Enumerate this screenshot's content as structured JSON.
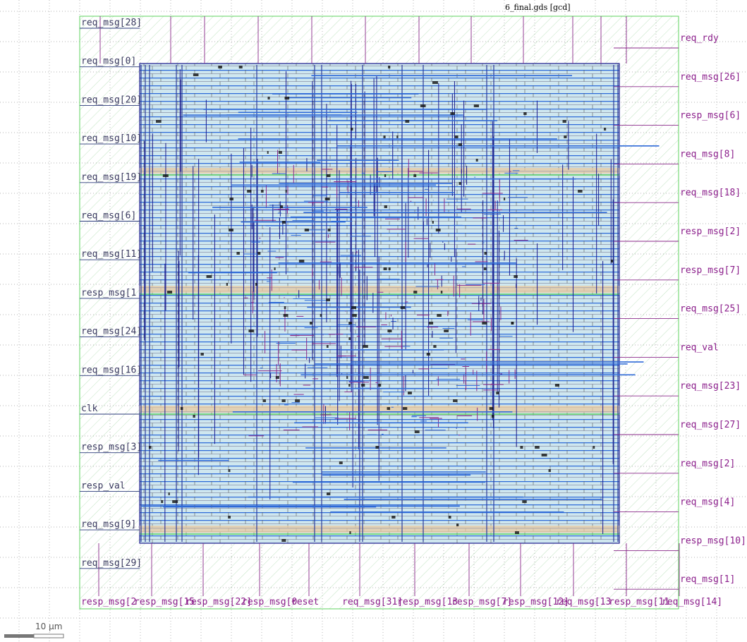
{
  "title": "6_final.gds [gcd]",
  "scale_bar": {
    "label": "10 μm"
  },
  "colors": {
    "pin_label": "#8b1e8b",
    "left_label": "#3a3a60",
    "boundary": "#5fd35f",
    "core_fill": "#c7e6ee",
    "metal_h": "#2e6ad8",
    "metal_v": "#1a1a8c",
    "route_purple": "#8a2a8a",
    "power_stripe": "#e8c9a0"
  },
  "pins": {
    "top": [],
    "left": [
      "req_msg[28]",
      "req_msg[0]",
      "req_msg[20]",
      "req_msg[10]",
      "req_msg[19]",
      "req_msg[6]",
      "req_msg[11]",
      "resp_msg[1",
      "req_msg[24]",
      "req_msg[16]",
      "clk",
      "resp_msg[3]",
      "resp_val",
      "req_msg[9]",
      "req_msg[29]"
    ],
    "right": [
      "req_rdy",
      "req_msg[26]",
      "resp_msg[6]",
      "req_msg[8]",
      "req_msg[18]",
      "resp_msg[2]",
      "resp_msg[7]",
      "req_msg[25]",
      "req_val",
      "req_msg[23]",
      "req_msg[27]",
      "req_msg[2]",
      "req_msg[4]",
      "resp_msg[10]",
      "req_msg[1]"
    ],
    "bottom": [
      "resp_msg[2",
      "resp_msg[15",
      "resp_msg[22]",
      "resp_msg[0",
      "reset",
      "req_msg[31]",
      "resp_msg[13",
      "resp_msg[7]",
      "resp_msg[12]",
      "req_msg[13",
      "resp_msg[11",
      "req_msg[14]"
    ]
  }
}
